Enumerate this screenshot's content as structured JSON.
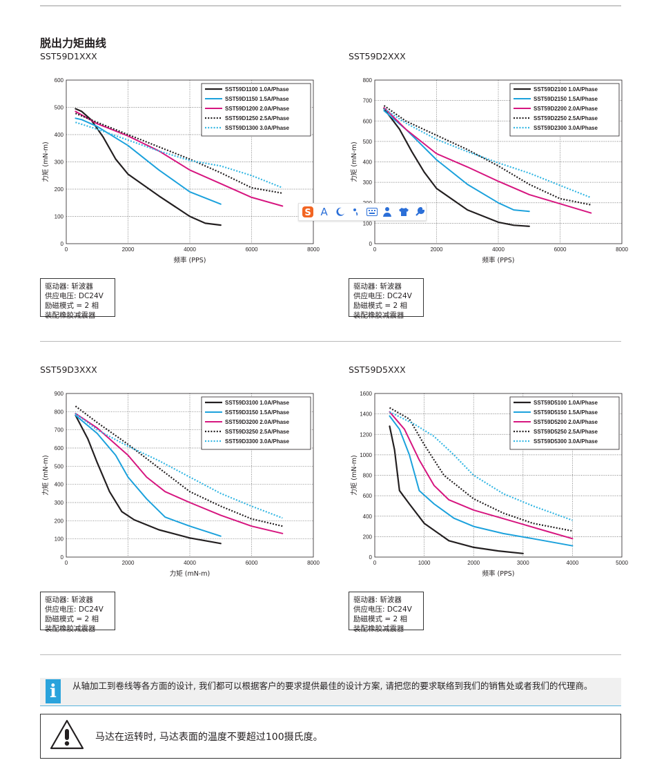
{
  "page_title": "脱出力矩曲线",
  "ime_toolbar": {
    "items": [
      "sogou-logo-icon",
      "text-mode-icon",
      "moon-icon",
      "punctuation-icon",
      "keyboard-icon",
      "user-icon",
      "shirt-icon",
      "wrench-icon"
    ],
    "text_mode_label": "A"
  },
  "info_box": {
    "driver": "驱动器: 斩波器",
    "voltage": "供应电压: DC24V",
    "mode": "励磁模式 = 2 相",
    "damper": "装配橡胶减震器"
  },
  "notice": {
    "text": "从轴加工到卷线等各方面的设计, 我们都可以根据客户的要求提供最佳的设计方案, 请把您的要求联络到我们的销售处或者我们的代理商。",
    "icon_letter": "i"
  },
  "warning": {
    "text": "马达在运转时, 马达表面的温度不要超过100摄氏度。"
  },
  "colors": {
    "black": "#231f20",
    "cyan": "#1ba1dc",
    "magenta": "#d6157f",
    "dark_dotted": "#231f20",
    "cyan_dotted": "#33b6e3"
  },
  "chart_data": [
    {
      "type": "line",
      "model_label": "SST59D1XXX",
      "xlabel": "频率 (PPS)",
      "ylabel": "力矩 (mN-m)",
      "xlim": [
        0,
        8000
      ],
      "ylim": [
        0,
        600
      ],
      "xticks": [
        0,
        2000,
        4000,
        6000,
        8000
      ],
      "yticks": [
        0,
        100,
        200,
        300,
        400,
        500,
        600
      ],
      "grid": "dotted",
      "legend": "top-right",
      "series": [
        {
          "name": "SST59D1100  1.0A/Phase",
          "style": "solid-black",
          "points": [
            [
              300,
              495
            ],
            [
              500,
              485
            ],
            [
              800,
              455
            ],
            [
              1200,
              390
            ],
            [
              1600,
              310
            ],
            [
              2000,
              255
            ],
            [
              3000,
              175
            ],
            [
              4000,
              100
            ],
            [
              4500,
              75
            ],
            [
              5000,
              68
            ]
          ]
        },
        {
          "name": "SST59D1150  1.5A/Phase",
          "style": "solid-cyan",
          "points": [
            [
              300,
              460
            ],
            [
              500,
              455
            ],
            [
              1000,
              430
            ],
            [
              2000,
              360
            ],
            [
              3000,
              270
            ],
            [
              4000,
              190
            ],
            [
              5000,
              145
            ]
          ]
        },
        {
          "name": "SST59D1200  2.0A/Phase",
          "style": "solid-magenta",
          "points": [
            [
              300,
              485
            ],
            [
              1000,
              440
            ],
            [
              2000,
              395
            ],
            [
              3000,
              340
            ],
            [
              4000,
              270
            ],
            [
              5000,
              220
            ],
            [
              6000,
              170
            ],
            [
              7000,
              138
            ]
          ]
        },
        {
          "name": "SST59D1250  2.5A/Phase",
          "style": "dotted-black",
          "points": [
            [
              300,
              478
            ],
            [
              1000,
              445
            ],
            [
              2000,
              400
            ],
            [
              3000,
              355
            ],
            [
              4000,
              310
            ],
            [
              5000,
              260
            ],
            [
              6000,
              205
            ],
            [
              7000,
              185
            ]
          ]
        },
        {
          "name": "SST59D1300  3.0A/Phase",
          "style": "dotted-cyan",
          "points": [
            [
              300,
              445
            ],
            [
              1000,
              420
            ],
            [
              2000,
              380
            ],
            [
              3000,
              340
            ],
            [
              4000,
              305
            ],
            [
              5000,
              285
            ],
            [
              6000,
              250
            ],
            [
              7000,
              205
            ]
          ]
        }
      ]
    },
    {
      "type": "line",
      "model_label": "SST59D2XXX",
      "xlabel": "频率 (PPS)",
      "ylabel": "力矩 (mN-m)",
      "xlim": [
        0,
        8000
      ],
      "ylim": [
        0,
        800
      ],
      "xticks": [
        0,
        2000,
        4000,
        6000,
        8000
      ],
      "yticks": [
        0,
        100,
        200,
        300,
        400,
        500,
        600,
        700,
        800
      ],
      "grid": "dotted",
      "legend": "top-right",
      "series": [
        {
          "name": "SST59D2100  1.0A/Phase",
          "style": "solid-black",
          "points": [
            [
              300,
              660
            ],
            [
              800,
              560
            ],
            [
              1200,
              450
            ],
            [
              1600,
              350
            ],
            [
              2000,
              270
            ],
            [
              3000,
              165
            ],
            [
              4000,
              105
            ],
            [
              4500,
              90
            ],
            [
              5000,
              85
            ]
          ]
        },
        {
          "name": "SST59D2150  1.5A/Phase",
          "style": "solid-cyan",
          "points": [
            [
              300,
              650
            ],
            [
              1000,
              560
            ],
            [
              2000,
              410
            ],
            [
              3000,
              290
            ],
            [
              4000,
              200
            ],
            [
              4500,
              165
            ],
            [
              5000,
              158
            ]
          ]
        },
        {
          "name": "SST59D2200  2.0A/Phase",
          "style": "solid-magenta",
          "points": [
            [
              300,
              665
            ],
            [
              1000,
              560
            ],
            [
              2000,
              440
            ],
            [
              3000,
              375
            ],
            [
              4000,
              305
            ],
            [
              5000,
              240
            ],
            [
              6000,
              195
            ],
            [
              7000,
              150
            ]
          ]
        },
        {
          "name": "SST59D2250  2.5A/Phase",
          "style": "dotted-black",
          "points": [
            [
              300,
              675
            ],
            [
              1000,
              600
            ],
            [
              2000,
              530
            ],
            [
              3000,
              460
            ],
            [
              4000,
              380
            ],
            [
              5000,
              290
            ],
            [
              6000,
              220
            ],
            [
              7000,
              190
            ]
          ]
        },
        {
          "name": "SST59D2300  3.0A/Phase",
          "style": "dotted-cyan",
          "points": [
            [
              300,
              660
            ],
            [
              1000,
              590
            ],
            [
              2000,
              510
            ],
            [
              3000,
              450
            ],
            [
              4000,
              395
            ],
            [
              5000,
              345
            ],
            [
              6000,
              285
            ],
            [
              7000,
              225
            ]
          ]
        }
      ]
    },
    {
      "type": "line",
      "model_label": "SST59D3XXX",
      "xlabel": "力矩 (mN-m)",
      "ylabel": "力矩 (mN-m)",
      "xlim": [
        0,
        8000
      ],
      "ylim": [
        0,
        900
      ],
      "xticks": [
        0,
        2000,
        4000,
        6000,
        8000
      ],
      "yticks": [
        0,
        100,
        200,
        300,
        400,
        500,
        600,
        700,
        800,
        900
      ],
      "grid": "dotted",
      "legend": "top-right",
      "series": [
        {
          "name": "SST59D3100  1.0A/Phase",
          "style": "solid-black",
          "points": [
            [
              300,
              780
            ],
            [
              700,
              650
            ],
            [
              1000,
              520
            ],
            [
              1400,
              360
            ],
            [
              1800,
              250
            ],
            [
              2200,
              205
            ],
            [
              3000,
              150
            ],
            [
              4000,
              105
            ],
            [
              5000,
              75
            ]
          ]
        },
        {
          "name": "SST59D3150  1.5A/Phase",
          "style": "solid-cyan",
          "points": [
            [
              300,
              780
            ],
            [
              1000,
              680
            ],
            [
              1600,
              560
            ],
            [
              2000,
              440
            ],
            [
              2600,
              320
            ],
            [
              3200,
              220
            ],
            [
              4000,
              170
            ],
            [
              5000,
              115
            ]
          ]
        },
        {
          "name": "SST59D3200  2.0A/Phase",
          "style": "solid-magenta",
          "points": [
            [
              300,
              790
            ],
            [
              1000,
              710
            ],
            [
              2000,
              560
            ],
            [
              2600,
              440
            ],
            [
              3200,
              360
            ],
            [
              4000,
              300
            ],
            [
              5000,
              230
            ],
            [
              6000,
              170
            ],
            [
              7000,
              130
            ]
          ]
        },
        {
          "name": "SST59D3250  2.5A/Phase",
          "style": "dotted-black",
          "points": [
            [
              300,
              830
            ],
            [
              1000,
              740
            ],
            [
              2000,
              620
            ],
            [
              3000,
              490
            ],
            [
              4000,
              360
            ],
            [
              5000,
              280
            ],
            [
              6000,
              210
            ],
            [
              7000,
              170
            ]
          ]
        },
        {
          "name": "SST59D3300  3.0A/Phase",
          "style": "dotted-cyan",
          "points": [
            [
              300,
              790
            ],
            [
              1000,
              700
            ],
            [
              2000,
              610
            ],
            [
              3000,
              530
            ],
            [
              4000,
              440
            ],
            [
              5000,
              350
            ],
            [
              6000,
              280
            ],
            [
              7000,
              215
            ]
          ]
        }
      ]
    },
    {
      "type": "line",
      "model_label": "SST59D5XXX",
      "xlabel": "频率 (PPS)",
      "ylabel": "力矩 (mN-m)",
      "xlim": [
        0,
        5000
      ],
      "ylim": [
        0,
        1600
      ],
      "xticks": [
        0,
        1000,
        2000,
        3000,
        4000,
        5000
      ],
      "yticks": [
        0,
        200,
        400,
        600,
        800,
        1000,
        1200,
        1400,
        1600
      ],
      "grid": "dotted",
      "legend": "top-right",
      "series": [
        {
          "name": "SST59D5100  1.0A/Phase",
          "style": "solid-black",
          "points": [
            [
              300,
              1280
            ],
            [
              400,
              1050
            ],
            [
              500,
              650
            ],
            [
              700,
              520
            ],
            [
              1000,
              330
            ],
            [
              1500,
              160
            ],
            [
              2000,
              95
            ],
            [
              2500,
              60
            ],
            [
              3000,
              35
            ]
          ]
        },
        {
          "name": "SST59D5150  1.5A/Phase",
          "style": "solid-cyan",
          "points": [
            [
              300,
              1380
            ],
            [
              500,
              1250
            ],
            [
              700,
              1000
            ],
            [
              900,
              650
            ],
            [
              1200,
              520
            ],
            [
              1600,
              380
            ],
            [
              2000,
              300
            ],
            [
              2600,
              230
            ],
            [
              3200,
              180
            ],
            [
              4000,
              110
            ]
          ]
        },
        {
          "name": "SST59D5200  2.0A/Phase",
          "style": "solid-magenta",
          "points": [
            [
              300,
              1420
            ],
            [
              600,
              1250
            ],
            [
              900,
              950
            ],
            [
              1200,
              700
            ],
            [
              1500,
              560
            ],
            [
              2000,
              460
            ],
            [
              2500,
              390
            ],
            [
              3000,
              320
            ],
            [
              3500,
              250
            ],
            [
              4000,
              180
            ]
          ]
        },
        {
          "name": "SST59D5250  2.5A/Phase",
          "style": "dotted-black",
          "points": [
            [
              300,
              1460
            ],
            [
              700,
              1350
            ],
            [
              1000,
              1100
            ],
            [
              1400,
              800
            ],
            [
              2000,
              570
            ],
            [
              2600,
              430
            ],
            [
              3200,
              330
            ],
            [
              4000,
              255
            ]
          ]
        },
        {
          "name": "SST59D5300  3.0A/Phase",
          "style": "dotted-cyan",
          "points": [
            [
              300,
              1420
            ],
            [
              800,
              1300
            ],
            [
              1200,
              1180
            ],
            [
              1600,
              1000
            ],
            [
              2000,
              800
            ],
            [
              2600,
              620
            ],
            [
              3200,
              500
            ],
            [
              4000,
              360
            ]
          ]
        }
      ]
    }
  ]
}
